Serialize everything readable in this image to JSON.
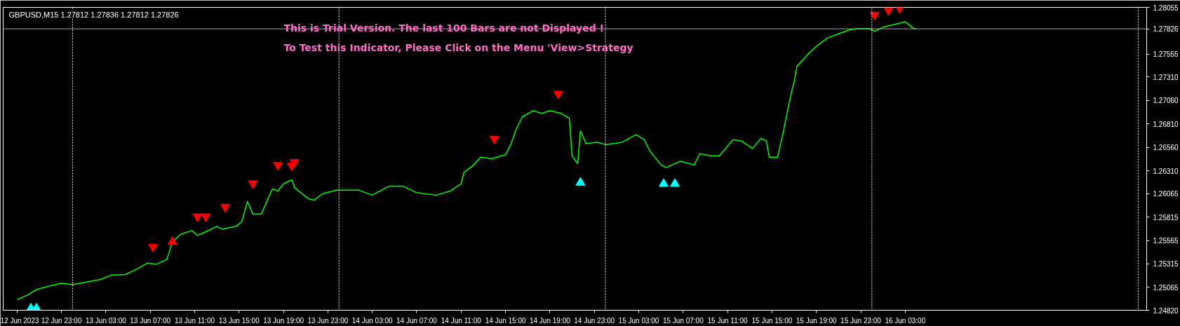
{
  "chart_data": {
    "type": "line",
    "title": "GBPUSD,M15  1.27812 1.27836 1.27812 1.27826",
    "annotations": [
      "This is Trial Version. The last 100 Bars are not Displayed !",
      "To Test this Indicator, Please Click on the Menu 'View>Strategy"
    ],
    "xlim": [
      "2023-06-12T17:45",
      "2023-06-17T00:45"
    ],
    "xticks": [
      {
        "value": "2023-06-12T19:00",
        "label": "12 Jun 2023"
      },
      {
        "value": "2023-06-12T23:00",
        "label": "12 Jun 23:00"
      },
      {
        "value": "2023-06-13T03:00",
        "label": "13 Jun 03:00"
      },
      {
        "value": "2023-06-13T07:00",
        "label": "13 Jun 07:00"
      },
      {
        "value": "2023-06-13T11:00",
        "label": "13 Jun 11:00"
      },
      {
        "value": "2023-06-13T15:00",
        "label": "13 Jun 15:00"
      },
      {
        "value": "2023-06-13T19:00",
        "label": "13 Jun 19:00"
      },
      {
        "value": "2023-06-13T23:00",
        "label": "13 Jun 23:00"
      },
      {
        "value": "2023-06-14T03:00",
        "label": "14 Jun 03:00"
      },
      {
        "value": "2023-06-14T07:00",
        "label": "14 Jun 07:00"
      },
      {
        "value": "2023-06-14T11:00",
        "label": "14 Jun 11:00"
      },
      {
        "value": "2023-06-14T15:00",
        "label": "14 Jun 15:00"
      },
      {
        "value": "2023-06-14T19:00",
        "label": "14 Jun 19:00"
      },
      {
        "value": "2023-06-14T23:00",
        "label": "14 Jun 23:00"
      },
      {
        "value": "2023-06-15T03:00",
        "label": "15 Jun 03:00"
      },
      {
        "value": "2023-06-15T07:00",
        "label": "15 Jun 07:00"
      },
      {
        "value": "2023-06-15T11:00",
        "label": "15 Jun 11:00"
      },
      {
        "value": "2023-06-15T15:00",
        "label": "15 Jun 15:00"
      },
      {
        "value": "2023-06-15T19:00",
        "label": "15 Jun 19:00"
      },
      {
        "value": "2023-06-15T23:00",
        "label": "15 Jun 23:00"
      },
      {
        "value": "2023-06-16T03:00",
        "label": "16 Jun 03:00"
      }
    ],
    "ylim": [
      1.2482,
      1.28055
    ],
    "yticks": [
      {
        "value": 1.2482,
        "label": "1.24820"
      },
      1.25065,
      1.25315,
      1.25565,
      1.25815,
      1.26065,
      {
        "value": 1.2631,
        "label": "1.26310"
      },
      {
        "value": 1.2656,
        "label": "1.26560"
      },
      {
        "value": 1.2681,
        "label": "1.26810"
      },
      {
        "value": 1.2706,
        "label": "1.27060"
      },
      {
        "value": 1.2731,
        "label": "1.27310"
      },
      1.27555,
      1.28055
    ],
    "grid": false,
    "ref_lines": [
      {
        "axis": "y",
        "value": 1.27826,
        "label": "1.27826",
        "color": "#a0a8b0",
        "line_style": "solid"
      },
      {
        "axis": "x",
        "value": "2023-06-13T00:00",
        "color": "#ffffff",
        "line_style": "dotted"
      },
      {
        "axis": "x",
        "value": "2023-06-14T00:00",
        "color": "#ffffff",
        "line_style": "dotted"
      },
      {
        "axis": "x",
        "value": "2023-06-15T00:00",
        "color": "#ffffff",
        "line_style": "dotted"
      },
      {
        "axis": "x",
        "value": "2023-06-16T00:00",
        "color": "#ffffff",
        "line_style": "dotted"
      },
      {
        "axis": "x",
        "value": "2023-06-17T00:00",
        "color": "#ffffff",
        "line_style": "dotted"
      }
    ],
    "series": [
      {
        "color": "#00ff00",
        "marker": "none",
        "x": [
          "2023-06-12T19:00",
          "2023-06-12T20:00",
          "2023-06-12T20:45",
          "2023-06-12T22:00",
          "2023-06-12T23:00",
          "2023-06-13T00:00",
          "2023-06-13T01:15",
          "2023-06-13T02:30",
          "2023-06-13T03:30",
          "2023-06-13T04:45",
          "2023-06-13T05:45",
          "2023-06-13T06:45",
          "2023-06-13T07:30",
          "2023-06-13T08:30",
          "2023-06-13T09:00",
          "2023-06-13T09:45",
          "2023-06-13T10:45",
          "2023-06-13T11:15",
          "2023-06-13T12:00",
          "2023-06-13T13:00",
          "2023-06-13T13:30",
          "2023-06-13T14:45",
          "2023-06-13T15:15",
          "2023-06-13T15:45",
          "2023-06-13T16:15",
          "2023-06-13T17:00",
          "2023-06-13T17:30",
          "2023-06-13T18:00",
          "2023-06-13T18:30",
          "2023-06-13T19:00",
          "2023-06-13T19:45",
          "2023-06-13T20:00",
          "2023-06-13T21:15",
          "2023-06-13T21:45",
          "2023-06-13T22:30",
          "2023-06-13T23:45",
          "2023-06-14T01:45",
          "2023-06-14T03:00",
          "2023-06-14T04:30",
          "2023-06-14T05:45",
          "2023-06-14T07:00",
          "2023-06-14T08:45",
          "2023-06-14T10:00",
          "2023-06-14T11:00",
          "2023-06-14T11:15",
          "2023-06-14T12:00",
          "2023-06-14T12:45",
          "2023-06-14T13:45",
          "2023-06-14T15:00",
          "2023-06-14T15:30",
          "2023-06-14T16:00",
          "2023-06-14T16:30",
          "2023-06-14T17:30",
          "2023-06-14T18:15",
          "2023-06-14T19:00",
          "2023-06-14T20:00",
          "2023-06-14T20:45",
          "2023-06-14T21:00",
          "2023-06-14T21:30",
          "2023-06-14T21:45",
          "2023-06-14T22:15",
          "2023-06-14T23:15",
          "2023-06-15T00:00",
          "2023-06-15T01:30",
          "2023-06-15T02:45",
          "2023-06-15T03:30",
          "2023-06-15T04:00",
          "2023-06-15T05:00",
          "2023-06-15T05:30",
          "2023-06-15T06:45",
          "2023-06-15T08:00",
          "2023-06-15T08:30",
          "2023-06-15T09:30",
          "2023-06-15T10:15",
          "2023-06-15T11:30",
          "2023-06-15T12:15",
          "2023-06-15T13:15",
          "2023-06-15T14:00",
          "2023-06-15T14:30",
          "2023-06-15T14:45",
          "2023-06-15T15:30",
          "2023-06-15T16:00",
          "2023-06-15T16:15",
          "2023-06-15T16:45",
          "2023-06-15T17:00",
          "2023-06-15T17:15",
          "2023-06-15T18:15",
          "2023-06-15T19:00",
          "2023-06-15T20:00",
          "2023-06-15T21:00",
          "2023-06-15T22:00",
          "2023-06-15T22:45",
          "2023-06-15T23:45",
          "2023-06-16T00:15",
          "2023-06-16T01:00",
          "2023-06-16T02:15",
          "2023-06-16T03:00",
          "2023-06-16T03:45",
          "2023-06-16T04:00"
        ],
        "values": [
          1.24933,
          1.24986,
          1.25041,
          1.25081,
          1.25108,
          1.25094,
          1.25121,
          1.25148,
          1.25197,
          1.25202,
          1.25257,
          1.25325,
          1.2531,
          1.25362,
          1.25551,
          1.25633,
          1.25671,
          1.25618,
          1.25659,
          1.25716,
          1.25686,
          1.25716,
          1.25769,
          1.25982,
          1.25847,
          1.25847,
          1.25982,
          1.26115,
          1.26093,
          1.2617,
          1.26213,
          1.2613,
          1.2601,
          1.25995,
          1.26063,
          1.26103,
          1.26103,
          1.26049,
          1.26145,
          1.26145,
          1.26077,
          1.26049,
          1.26093,
          1.2617,
          1.26291,
          1.26358,
          1.26454,
          1.26439,
          1.2648,
          1.266,
          1.26763,
          1.26883,
          1.26951,
          1.26923,
          1.26951,
          1.26923,
          1.26868,
          1.26469,
          1.26386,
          1.26735,
          1.266,
          1.26614,
          1.2659,
          1.26614,
          1.26695,
          1.26642,
          1.26522,
          1.26371,
          1.26345,
          1.26412,
          1.26371,
          1.26492,
          1.26469,
          1.26469,
          1.26642,
          1.26627,
          1.26547,
          1.26655,
          1.26627,
          1.26454,
          1.26454,
          1.26714,
          1.26861,
          1.27148,
          1.27264,
          1.27425,
          1.27554,
          1.27641,
          1.27728,
          1.27772,
          1.27815,
          1.27829,
          1.27829,
          1.278,
          1.27843,
          1.27879,
          1.27902,
          1.27829,
          1.27826
        ]
      },
      {
        "type": "scatter",
        "color": "#ff0000",
        "marker": "triangle",
        "x": [
          "2023-06-13T07:15",
          "2023-06-13T09:00",
          "2023-06-13T11:15",
          "2023-06-13T12:00",
          "2023-06-13T13:45",
          "2023-06-13T16:15",
          "2023-06-13T18:30",
          "2023-06-13T19:45",
          "2023-06-13T20:00",
          "2023-06-14T14:00",
          "2023-06-14T19:45",
          "2023-06-16T00:15",
          "2023-06-16T01:30",
          "2023-06-16T02:30"
        ],
        "values": [
          1.25498,
          1.25551,
          1.25821,
          1.25821,
          1.25923,
          1.26175,
          1.26371,
          1.26363,
          1.26401,
          1.2665,
          1.27132,
          1.27975,
          1.28023,
          1.28047
        ]
      },
      {
        "type": "scatter",
        "color": "#00ffff",
        "marker": "triangle",
        "x": [
          "2023-06-12T20:15",
          "2023-06-12T20:45",
          "2023-06-14T21:45",
          "2023-06-15T05:15",
          "2023-06-15T06:15"
        ],
        "values": [
          1.24839,
          1.24839,
          1.26183,
          1.2617,
          1.2617
        ]
      }
    ]
  }
}
